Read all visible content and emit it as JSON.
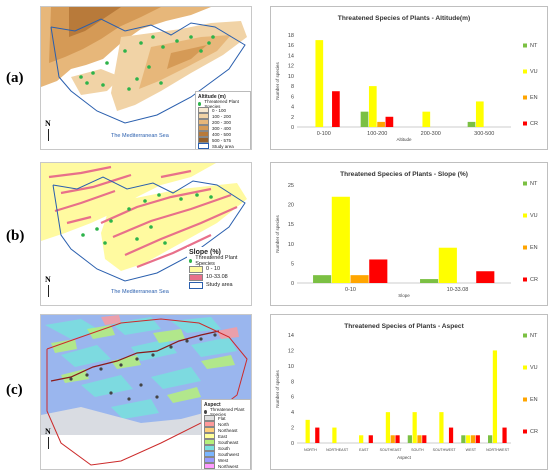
{
  "panels": [
    {
      "label": "(a)",
      "map": {
        "legend_title": "Altitude (m)",
        "legend_items": [
          "Threatened Plant Species",
          "0 - 100",
          "100 - 200",
          "200 - 300",
          "300 - 400",
          "400 - 500",
          "500 - 575",
          "Study area"
        ],
        "legend_colors": [
          "#2db34a",
          "#f7e8cf",
          "#f1d3a6",
          "#e7b77a",
          "#d59a56",
          "#b87a3a",
          "#96602a",
          "#ffffff"
        ],
        "sea_label": "The Mediterranean Sea",
        "north": "N"
      }
    },
    {
      "label": "(b)",
      "map": {
        "legend_title": "Slope (%)",
        "legend_items": [
          "Threatened Plant Species",
          "0 - 10",
          "10-33.08",
          "Study area"
        ],
        "legend_colors": [
          "#2db34a",
          "#fffaa0",
          "#e8708a",
          "#ffffff"
        ],
        "sea_label": "The Mediterranean Sea",
        "north": "N"
      }
    },
    {
      "label": "(c)",
      "map": {
        "legend_title": "Aspect",
        "legend_items": [
          "Threatened Plant Species",
          "Flat",
          "North",
          "Northeast",
          "East",
          "Southeast",
          "South",
          "Southwest",
          "West",
          "Northwest",
          "North"
        ],
        "legend_colors": [
          "#444444",
          "#e0e0e0",
          "#ff9a9a",
          "#ffcf7a",
          "#ffff99",
          "#b6f07a",
          "#7adfdf",
          "#7ab6ff",
          "#9a9aff",
          "#ff9aff",
          "#ff9a9a"
        ],
        "sea_label": "",
        "north": "N"
      }
    }
  ],
  "colors": {
    "NT": "#7bc043",
    "VU": "#ffff00",
    "EN": "#ffa500",
    "CR": "#ff0000"
  },
  "chart_data": [
    {
      "type": "bar",
      "title": "Threatened Species of Plants -  Altitude(m)",
      "xlabel": "Altitude",
      "ylabel": "Number of species",
      "categories": [
        "0-100",
        "100-200",
        "200-300",
        "300-500"
      ],
      "ylim": [
        0,
        18
      ],
      "yticks": [
        "0",
        "2",
        "4",
        "6",
        "8",
        "10",
        "12",
        "14",
        "16",
        "18"
      ],
      "grid": false,
      "legend_position": "right",
      "series": [
        {
          "name": "NT",
          "values": [
            0,
            3,
            0,
            1
          ]
        },
        {
          "name": "VU",
          "values": [
            17,
            8,
            3,
            5
          ]
        },
        {
          "name": "EN",
          "values": [
            0,
            1,
            0,
            0
          ]
        },
        {
          "name": "CR",
          "values": [
            7,
            2,
            0,
            0
          ]
        }
      ]
    },
    {
      "type": "bar",
      "title": "Threatened Species of Plants -  Slope (%)",
      "xlabel": "Slope",
      "ylabel": "Number of species",
      "categories": [
        "0-10",
        "10-33.08"
      ],
      "ylim": [
        0,
        25
      ],
      "yticks": [
        "0",
        "5",
        "10",
        "15",
        "20",
        "25"
      ],
      "grid": false,
      "legend_position": "right",
      "series": [
        {
          "name": "NT",
          "values": [
            2,
            1
          ]
        },
        {
          "name": "VU",
          "values": [
            22,
            9
          ]
        },
        {
          "name": "EN",
          "values": [
            2,
            0
          ]
        },
        {
          "name": "CR",
          "values": [
            6,
            3
          ]
        }
      ]
    },
    {
      "type": "bar",
      "title": "Threatened Species of Plants -  Aspect",
      "xlabel": "Aspect",
      "ylabel": "Number of species",
      "categories": [
        "NORTH",
        "NORTHEAST",
        "EAST",
        "SOUTHEAST",
        "SOUTH",
        "SOUTHWEST",
        "WEST",
        "NORTHWEST"
      ],
      "ylim": [
        0,
        14
      ],
      "yticks": [
        "0",
        "2",
        "4",
        "6",
        "8",
        "10",
        "12",
        "14"
      ],
      "grid": false,
      "legend_position": "right",
      "series": [
        {
          "name": "NT",
          "values": [
            0,
            0,
            0,
            0,
            1,
            0,
            1,
            1
          ]
        },
        {
          "name": "VU",
          "values": [
            3,
            2,
            1,
            4,
            4,
            4,
            1,
            12
          ]
        },
        {
          "name": "EN",
          "values": [
            0,
            0,
            0,
            1,
            1,
            0,
            1,
            0
          ]
        },
        {
          "name": "CR",
          "values": [
            2,
            0,
            1,
            1,
            1,
            2,
            1,
            2
          ]
        }
      ]
    }
  ]
}
